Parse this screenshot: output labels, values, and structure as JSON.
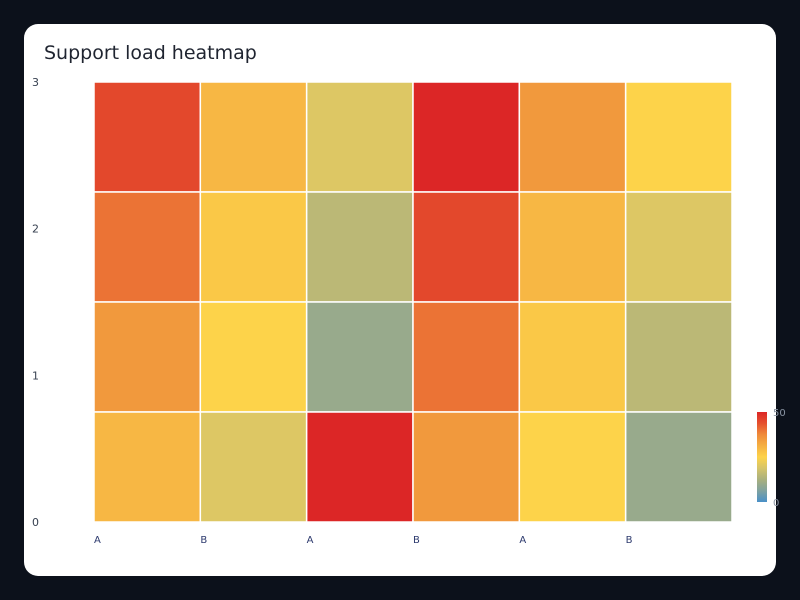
{
  "header": {
    "title": "Support load heatmap"
  },
  "chart_data": {
    "type": "heatmap",
    "title": "Support load heatmap",
    "x_categories": [
      "A",
      "B",
      "A",
      "B",
      "A",
      "B"
    ],
    "y_ticks": [
      "0",
      "1",
      "2",
      "3"
    ],
    "rows_top_to_bottom": [
      [
        45,
        30,
        20,
        50,
        35,
        25
      ],
      [
        40,
        27,
        15,
        45,
        30,
        20
      ],
      [
        35,
        25,
        10,
        40,
        27,
        15
      ],
      [
        30,
        20,
        50,
        35,
        25,
        10
      ]
    ],
    "colorscale": {
      "min": 0,
      "max": 50,
      "tick_labels": [
        "50",
        "0"
      ],
      "stops": [
        "#4a90c8",
        "#7fa2a0",
        "#a9b07e",
        "#d5c46a",
        "#fdd34a",
        "#f5b042",
        "#ef8a3a",
        "#e5502e",
        "#dc2626"
      ]
    },
    "grid": false,
    "legend": "right-colorbar"
  }
}
